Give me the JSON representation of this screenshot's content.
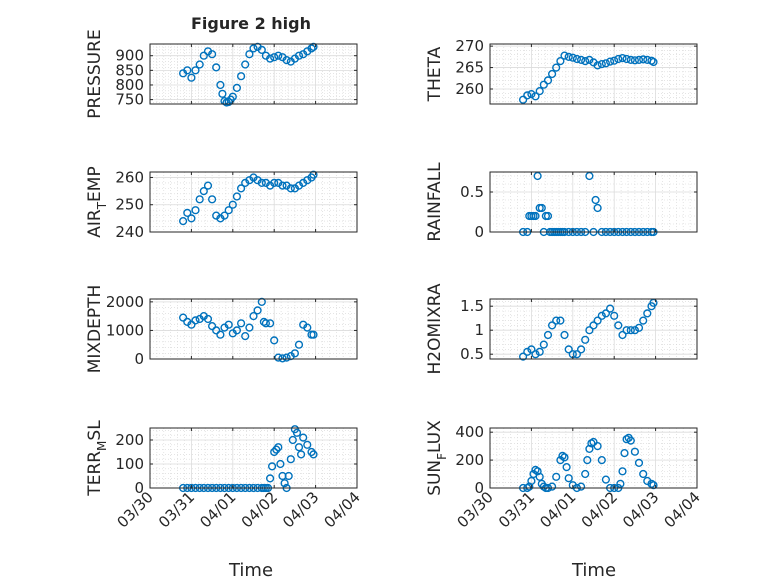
{
  "chart_data": {
    "type": "scatter",
    "title": "Figure 2 high",
    "xlabel": "Time",
    "x_ticks": [
      "03/30",
      "03/31",
      "04/01",
      "04/02",
      "04/03",
      "04/04"
    ],
    "x_range": [
      "03/30",
      "04/04"
    ],
    "grid": true,
    "marker": "open circle",
    "color": "#0072BD",
    "panels": [
      {
        "ylabel": "PRESSURE",
        "ylabel_sub": "",
        "ylim": [
          735,
          940
        ],
        "yticks": [
          750,
          800,
          850,
          900
        ],
        "yticklabels": [
          "750",
          "800",
          "850",
          "900"
        ],
        "x": [
          0.8,
          0.9,
          1.0,
          1.1,
          1.2,
          1.3,
          1.4,
          1.5,
          1.6,
          1.7,
          1.75,
          1.8,
          1.85,
          1.9,
          1.95,
          2.0,
          2.1,
          2.2,
          2.3,
          2.4,
          2.5,
          2.6,
          2.7,
          2.8,
          2.9,
          3.0,
          3.1,
          3.2,
          3.3,
          3.4,
          3.5,
          3.6,
          3.7,
          3.8,
          3.9,
          3.95
        ],
        "y": [
          840,
          850,
          825,
          850,
          870,
          900,
          915,
          905,
          860,
          800,
          770,
          745,
          740,
          742,
          750,
          760,
          790,
          830,
          870,
          905,
          925,
          930,
          920,
          900,
          890,
          895,
          900,
          895,
          885,
          880,
          890,
          900,
          905,
          915,
          925,
          930
        ]
      },
      {
        "ylabel": "THETA",
        "ylabel_sub": "",
        "ylim": [
          256.5,
          270.5
        ],
        "yticks": [
          260,
          265,
          270
        ],
        "yticklabels": [
          "260",
          "265",
          "270"
        ],
        "x": [
          0.8,
          0.9,
          1.0,
          1.1,
          1.2,
          1.3,
          1.4,
          1.5,
          1.6,
          1.7,
          1.8,
          1.9,
          2.0,
          2.1,
          2.2,
          2.3,
          2.4,
          2.5,
          2.6,
          2.7,
          2.8,
          2.9,
          3.0,
          3.1,
          3.2,
          3.3,
          3.4,
          3.5,
          3.6,
          3.7,
          3.8,
          3.9,
          3.95
        ],
        "y": [
          257.5,
          258.5,
          258.8,
          258.3,
          259.5,
          261.0,
          262.0,
          263.5,
          265.0,
          266.5,
          267.8,
          267.5,
          267.3,
          267.0,
          266.8,
          266.5,
          266.8,
          266.2,
          265.5,
          265.8,
          266.0,
          266.4,
          266.6,
          267.0,
          267.2,
          267.0,
          266.8,
          266.7,
          266.8,
          266.9,
          266.8,
          266.6,
          266.3
        ]
      },
      {
        "ylabel": "AIR",
        "ylabel_sub": "T",
        "ylabel_after": "EMP",
        "ylim": [
          240,
          262
        ],
        "yticks": [
          240,
          250,
          260
        ],
        "yticklabels": [
          "240",
          "250",
          "260"
        ],
        "x": [
          0.8,
          0.9,
          1.0,
          1.1,
          1.2,
          1.3,
          1.4,
          1.5,
          1.6,
          1.7,
          1.8,
          1.9,
          2.0,
          2.1,
          2.2,
          2.3,
          2.4,
          2.5,
          2.6,
          2.7,
          2.8,
          2.9,
          3.0,
          3.1,
          3.2,
          3.3,
          3.4,
          3.5,
          3.6,
          3.7,
          3.8,
          3.9,
          3.95
        ],
        "y": [
          244,
          247,
          245,
          248,
          252,
          255,
          257,
          252,
          246,
          245,
          246,
          248,
          250,
          253,
          256,
          258,
          259,
          260,
          259,
          258,
          258,
          257,
          258,
          258,
          257,
          257,
          256,
          256,
          257,
          258,
          259,
          260,
          261
        ]
      },
      {
        "ylabel": "RAINFALL",
        "ylabel_sub": "",
        "ylim": [
          0,
          0.75
        ],
        "yticks": [
          0,
          0.5
        ],
        "yticklabels": [
          "0",
          "0.5"
        ],
        "x": [
          0.8,
          0.9,
          0.95,
          1.0,
          1.05,
          1.1,
          1.15,
          1.2,
          1.25,
          1.3,
          1.35,
          1.4,
          1.45,
          1.5,
          1.55,
          1.6,
          1.65,
          1.7,
          1.75,
          1.8,
          1.9,
          2.0,
          2.1,
          2.2,
          2.3,
          2.4,
          2.5,
          2.55,
          2.6,
          2.7,
          2.8,
          2.9,
          3.0,
          3.1,
          3.2,
          3.3,
          3.4,
          3.5,
          3.6,
          3.7,
          3.8,
          3.9,
          3.95
        ],
        "y": [
          0,
          0,
          0.2,
          0.2,
          0.2,
          0.2,
          0.7,
          0.3,
          0.3,
          0,
          0.2,
          0.2,
          0,
          0,
          0,
          0,
          0,
          0,
          0,
          0,
          0,
          0,
          0,
          0,
          0,
          0.7,
          0,
          0.4,
          0.3,
          0,
          0,
          0,
          0,
          0,
          0,
          0,
          0,
          0,
          0,
          0,
          0,
          0,
          0
        ]
      },
      {
        "ylabel": "MIXDEPTH",
        "ylabel_sub": "",
        "ylim": [
          0,
          2100
        ],
        "yticks": [
          0,
          1000,
          2000
        ],
        "yticklabels": [
          "0",
          "1000",
          "2000"
        ],
        "x": [
          0.8,
          0.9,
          1.0,
          1.1,
          1.2,
          1.3,
          1.4,
          1.5,
          1.6,
          1.7,
          1.8,
          1.9,
          2.0,
          2.1,
          2.2,
          2.3,
          2.4,
          2.5,
          2.6,
          2.7,
          2.75,
          2.8,
          2.9,
          3.0,
          3.1,
          3.2,
          3.3,
          3.4,
          3.5,
          3.6,
          3.7,
          3.8,
          3.9,
          3.95
        ],
        "y": [
          1450,
          1300,
          1200,
          1350,
          1400,
          1500,
          1400,
          1150,
          1000,
          850,
          1100,
          1200,
          900,
          1000,
          1250,
          800,
          1100,
          1500,
          1700,
          2000,
          1300,
          1250,
          1250,
          650,
          50,
          20,
          50,
          100,
          200,
          500,
          1200,
          1100,
          850,
          850
        ]
      },
      {
        "ylabel": "H2OMIXRA",
        "ylabel_sub": "",
        "ylim": [
          0.4,
          1.65
        ],
        "yticks": [
          0.5,
          1,
          1.5
        ],
        "yticklabels": [
          "0.5",
          "1",
          "1.5"
        ],
        "x": [
          0.8,
          0.9,
          1.0,
          1.1,
          1.2,
          1.3,
          1.4,
          1.5,
          1.6,
          1.7,
          1.8,
          1.9,
          2.0,
          2.1,
          2.2,
          2.3,
          2.4,
          2.5,
          2.6,
          2.7,
          2.8,
          2.9,
          3.0,
          3.1,
          3.2,
          3.3,
          3.4,
          3.5,
          3.6,
          3.7,
          3.8,
          3.9,
          3.95
        ],
        "y": [
          0.45,
          0.55,
          0.6,
          0.5,
          0.55,
          0.7,
          0.9,
          1.1,
          1.2,
          1.2,
          0.9,
          0.6,
          0.5,
          0.5,
          0.6,
          0.8,
          1.0,
          1.1,
          1.2,
          1.3,
          1.35,
          1.45,
          1.3,
          1.1,
          0.9,
          1.0,
          1.0,
          1.0,
          1.05,
          1.2,
          1.35,
          1.5,
          1.57
        ]
      },
      {
        "ylabel": "TERR",
        "ylabel_sub": "M",
        "ylabel_after": "SL",
        "ylim": [
          0,
          250
        ],
        "yticks": [
          0,
          100,
          200
        ],
        "yticklabels": [
          "0",
          "100",
          "200"
        ],
        "x": [
          0.8,
          0.9,
          1.0,
          1.1,
          1.2,
          1.3,
          1.4,
          1.5,
          1.6,
          1.7,
          1.8,
          1.9,
          2.0,
          2.1,
          2.2,
          2.3,
          2.4,
          2.5,
          2.6,
          2.7,
          2.75,
          2.8,
          2.85,
          2.9,
          2.95,
          3.0,
          3.05,
          3.1,
          3.15,
          3.2,
          3.25,
          3.3,
          3.35,
          3.4,
          3.45,
          3.5,
          3.55,
          3.6,
          3.65,
          3.7,
          3.8,
          3.9,
          3.95
        ],
        "y": [
          0,
          0,
          0,
          0,
          0,
          0,
          0,
          0,
          0,
          0,
          0,
          0,
          0,
          0,
          0,
          0,
          0,
          0,
          0,
          0,
          0,
          0,
          0,
          40,
          90,
          150,
          160,
          170,
          100,
          50,
          20,
          0,
          50,
          120,
          200,
          245,
          230,
          170,
          140,
          210,
          180,
          150,
          140
        ]
      },
      {
        "ylabel": "SUN",
        "ylabel_sub": "F",
        "ylabel_after": "LUX",
        "ylim": [
          0,
          430
        ],
        "yticks": [
          0,
          200,
          400
        ],
        "yticklabels": [
          "0",
          "200",
          "400"
        ],
        "x": [
          0.8,
          0.9,
          0.95,
          1.0,
          1.05,
          1.1,
          1.15,
          1.2,
          1.25,
          1.3,
          1.35,
          1.4,
          1.5,
          1.6,
          1.7,
          1.75,
          1.8,
          1.85,
          1.9,
          2.0,
          2.1,
          2.2,
          2.3,
          2.35,
          2.4,
          2.45,
          2.5,
          2.6,
          2.7,
          2.8,
          2.9,
          3.0,
          3.1,
          3.15,
          3.2,
          3.25,
          3.3,
          3.35,
          3.4,
          3.5,
          3.6,
          3.7,
          3.8,
          3.9,
          3.95
        ],
        "y": [
          0,
          0,
          10,
          50,
          100,
          130,
          120,
          80,
          30,
          10,
          0,
          0,
          10,
          80,
          200,
          230,
          220,
          150,
          70,
          20,
          0,
          10,
          100,
          200,
          280,
          320,
          330,
          300,
          200,
          60,
          0,
          0,
          0,
          30,
          120,
          250,
          350,
          360,
          340,
          260,
          180,
          100,
          50,
          30,
          20
        ]
      }
    ]
  }
}
